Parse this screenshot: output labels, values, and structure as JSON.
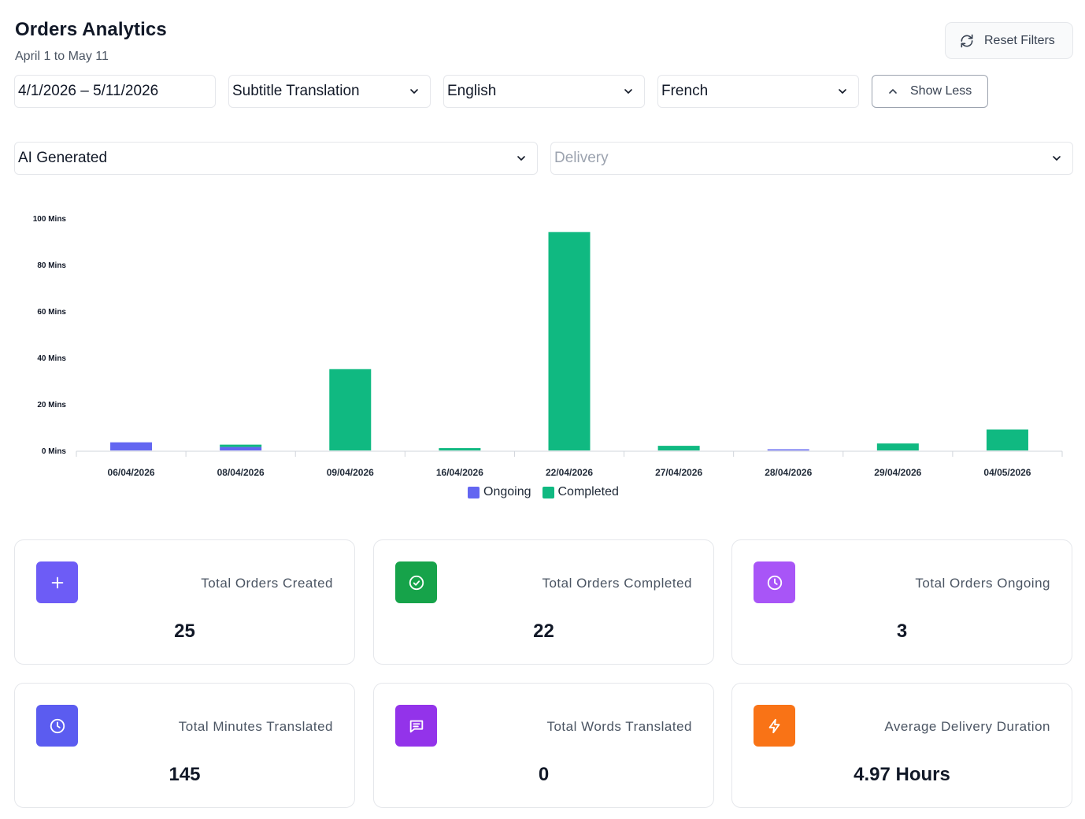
{
  "header": {
    "title": "Orders Analytics",
    "subtitle": "April 1 to May 11",
    "reset_label": "Reset Filters"
  },
  "filters": {
    "date_range": "4/1/2026 – 5/11/2026",
    "service": "Subtitle Translation",
    "source_language": "English",
    "target_language": "French",
    "show_less_label": "Show Less",
    "generation": "AI Generated",
    "stage_placeholder": "Delivery"
  },
  "chart_data": {
    "type": "bar",
    "stacked": true,
    "categories": [
      "06/04/2026",
      "08/04/2026",
      "09/04/2026",
      "16/04/2026",
      "22/04/2026",
      "27/04/2026",
      "28/04/2026",
      "29/04/2026",
      "04/05/2026"
    ],
    "series": [
      {
        "name": "Ongoing",
        "color": "#6366f1",
        "values": [
          3.5,
          1.5,
          0,
          0,
          0,
          0,
          0.5,
          0,
          0
        ]
      },
      {
        "name": "Completed",
        "color": "#10b981",
        "values": [
          0,
          1,
          35,
          1,
          94,
          2,
          0,
          3,
          9
        ]
      }
    ],
    "yticks": [
      "0 Mins",
      "20 Mins",
      "40 Mins",
      "60 Mins",
      "80 Mins",
      "100 Mins"
    ],
    "ylim": [
      0,
      100
    ],
    "legend": "bottom-center"
  },
  "stats": [
    {
      "label": "Total Orders Created",
      "value": "25",
      "icon": "plus-icon",
      "color": "#6d5cf6"
    },
    {
      "label": "Total Orders Completed",
      "value": "22",
      "icon": "check-circle-icon",
      "color": "#16a34a"
    },
    {
      "label": "Total Orders Ongoing",
      "value": "3",
      "icon": "clock-icon",
      "color": "#a855f7"
    },
    {
      "label": "Total Minutes Translated",
      "value": "145",
      "icon": "clock-icon",
      "color": "#5b5cf0"
    },
    {
      "label": "Total Words Translated",
      "value": "0",
      "icon": "message-icon",
      "color": "#9333ea"
    },
    {
      "label": "Average Delivery Duration",
      "value": "4.97 Hours",
      "icon": "lightning-icon",
      "color": "#f97316"
    }
  ]
}
